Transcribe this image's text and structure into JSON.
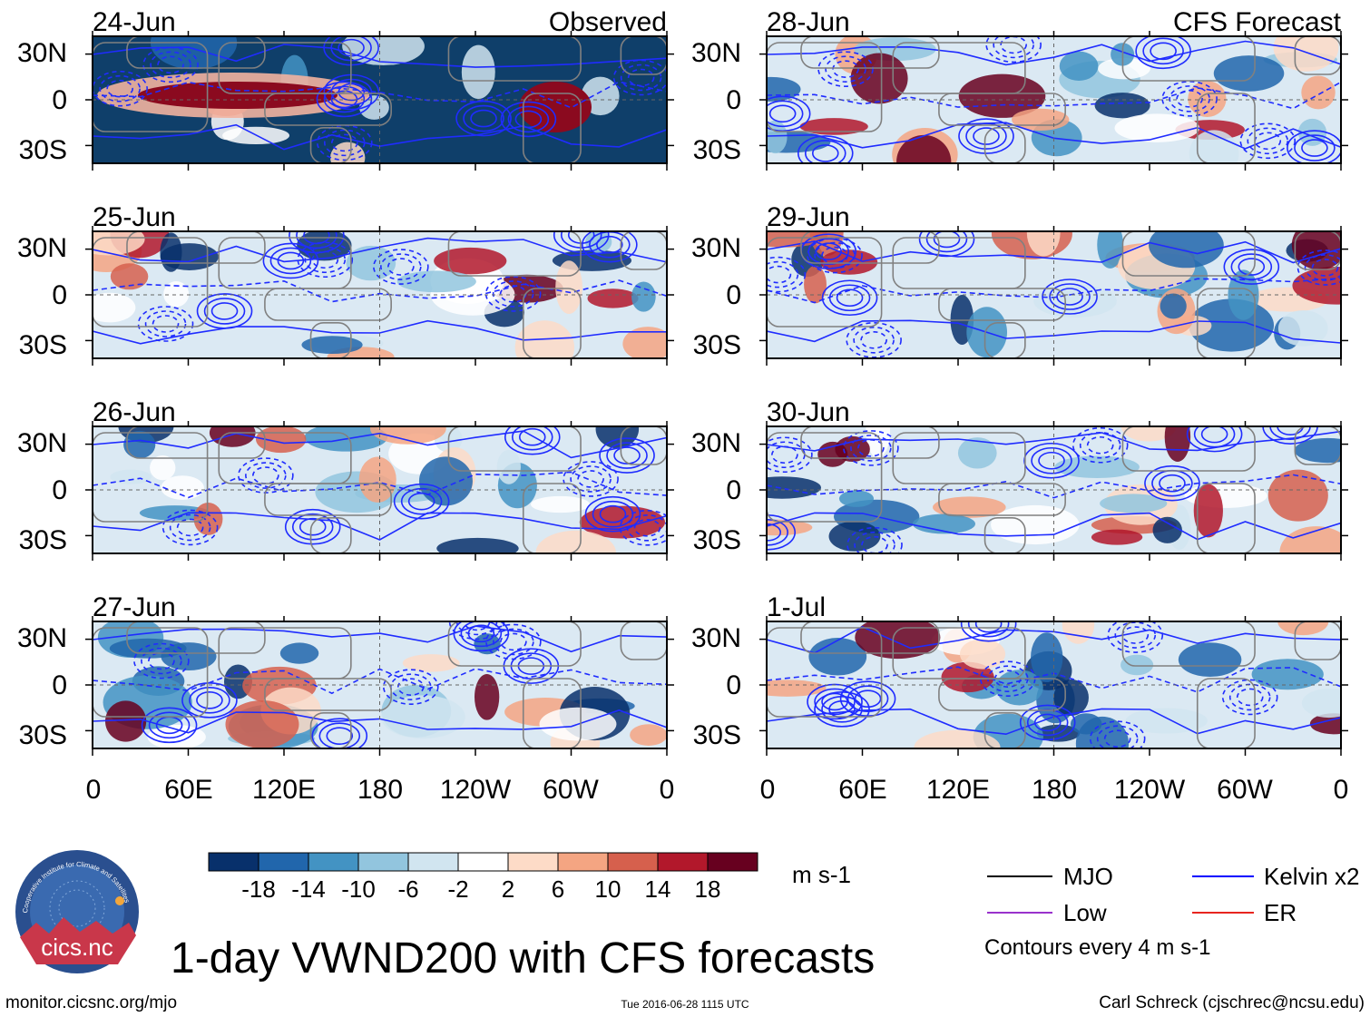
{
  "chart_data": {
    "type": "heatmap",
    "title": "1-day VWND200 with CFS forecasts",
    "variable": "VWND200",
    "units": "m s-1",
    "x_ticks": [
      "0",
      "60E",
      "120E",
      "180",
      "120W",
      "60W",
      "0"
    ],
    "y_ticks": [
      "30N",
      "0",
      "30S"
    ],
    "columns": [
      {
        "label": "Observed",
        "panels": [
          "24-Jun",
          "25-Jun",
          "26-Jun",
          "27-Jun"
        ]
      },
      {
        "label": "CFS Forecast",
        "panels": [
          "28-Jun",
          "29-Jun",
          "30-Jun",
          "1-Jul"
        ]
      }
    ],
    "colorbar": {
      "levels": [
        -18,
        -14,
        -10,
        -6,
        -2,
        2,
        6,
        10,
        14,
        18
      ],
      "level_labels": [
        "-18",
        "-14",
        "-10",
        "-6",
        "-2",
        "2",
        "6",
        "10",
        "14",
        "18"
      ],
      "colors": [
        "#08306b",
        "#2166ac",
        "#4393c3",
        "#92c5de",
        "#d1e5f0",
        "#ffffff",
        "#fddbc7",
        "#f4a582",
        "#d6604d",
        "#b2182b",
        "#67001f"
      ]
    },
    "legend": [
      {
        "label": "MJO",
        "color": "#000000"
      },
      {
        "label": "Kelvin x2",
        "color": "#0000ff"
      },
      {
        "label": "Low",
        "color": "#9932cc"
      },
      {
        "label": "ER",
        "color": "#e8251f"
      }
    ],
    "contour_note": "Contours every 4 m s-1"
  },
  "logo": {
    "text": "cics.nc",
    "ring_text": "Cooperative Institute for Climate and Satellites"
  },
  "footer": {
    "url": "monitor.cicsnc.org/mjo",
    "timestamp": "Tue 2016-06-28 1115 UTC",
    "author": "Carl Schreck (cjschrec@ncsu.edu)"
  }
}
